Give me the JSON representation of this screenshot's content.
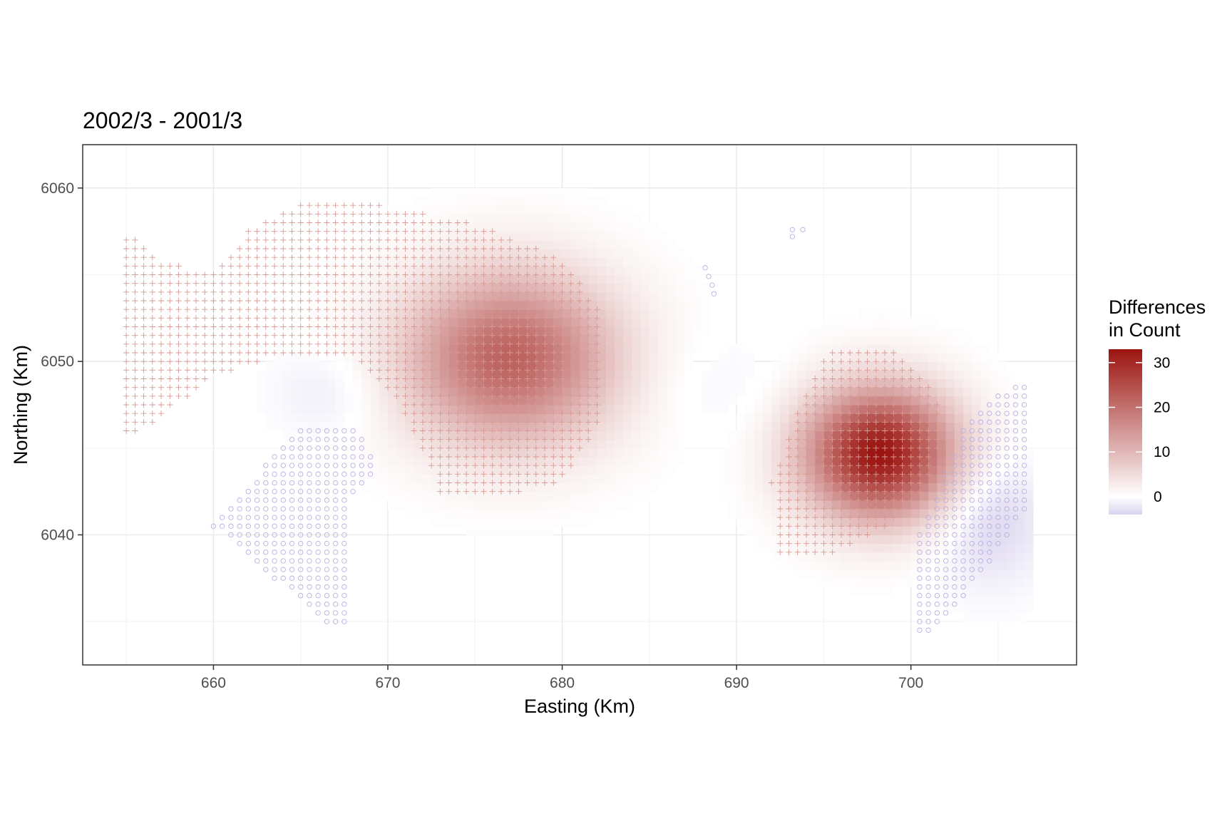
{
  "chart_data": {
    "type": "heatmap",
    "title": "2002/3 - 2001/3",
    "xlabel": "Easting (Km)",
    "ylabel": "Northing (Km)",
    "xlim": [
      652.5,
      709.5
    ],
    "ylim": [
      6032.5,
      6062.5
    ],
    "x_ticks": [
      660,
      670,
      680,
      690,
      700
    ],
    "y_ticks": [
      6040,
      6050,
      6060
    ],
    "grid": true,
    "legend": {
      "title_line1": "Differences",
      "title_line2": "in Count",
      "position": "right",
      "ticks": [
        30,
        20,
        10,
        0
      ],
      "min": -4,
      "max": 33,
      "color_low": "#d9d3ee",
      "color_mid": "#ffffff",
      "color_high": "#9b1410"
    },
    "surface_peaks": [
      {
        "x": 677.0,
        "y": 6050.2,
        "value": 22,
        "sx": 4.2,
        "sy": 3.4
      },
      {
        "x": 698.2,
        "y": 6044.7,
        "value": 33,
        "sx": 3.0,
        "sy": 2.6
      },
      {
        "x": 667.0,
        "y": 6048.3,
        "value": -2,
        "sx": 2.4,
        "sy": 1.8
      },
      {
        "x": 688.5,
        "y": 6048.6,
        "value": -1,
        "sx": 3.0,
        "sy": 2.0
      },
      {
        "x": 704.5,
        "y": 6041.0,
        "value": -4,
        "sx": 2.2,
        "sy": 2.6
      }
    ],
    "plus_regions": [
      {
        "series": "positive",
        "polygon": [
          [
            655,
            6057.5
          ],
          [
            657,
            6056
          ],
          [
            660,
            6055
          ],
          [
            662,
            6057.5
          ],
          [
            666,
            6059.5
          ],
          [
            670,
            6059
          ],
          [
            675,
            6058
          ],
          [
            680,
            6056
          ],
          [
            682.5,
            6052.5
          ],
          [
            682.5,
            6047
          ],
          [
            680,
            6043
          ],
          [
            678,
            6042.5
          ],
          [
            673,
            6042.5
          ],
          [
            671,
            6047
          ],
          [
            668,
            6050.5
          ],
          [
            664,
            6050.5
          ],
          [
            660,
            6049
          ],
          [
            656,
            6046
          ],
          [
            655,
            6046
          ]
        ]
      },
      {
        "series": "positive",
        "polygon": [
          [
            696,
            6051
          ],
          [
            699,
            6051
          ],
          [
            701.5,
            6048
          ],
          [
            702,
            6046
          ],
          [
            701,
            6043
          ],
          [
            699,
            6040.5
          ],
          [
            696,
            6039
          ],
          [
            692.5,
            6039
          ],
          [
            692,
            6043
          ],
          [
            693.5,
            6047
          ],
          [
            695,
            6050
          ]
        ]
      }
    ],
    "circle_regions": [
      {
        "series": "negative",
        "polygon": [
          [
            665,
            6046.5
          ],
          [
            668,
            6046.5
          ],
          [
            669.5,
            6044
          ],
          [
            668,
            6042
          ],
          [
            668,
            6035
          ],
          [
            667,
            6034.5
          ],
          [
            660,
            6040.5
          ],
          [
            663,
            6044
          ]
        ]
      },
      {
        "series": "negative",
        "polygon": [
          [
            707,
            6049
          ],
          [
            707,
            6042
          ],
          [
            705,
            6039
          ],
          [
            701.5,
            6034.5
          ],
          [
            700.5,
            6034.5
          ],
          [
            700.5,
            6040
          ],
          [
            703,
            6046
          ],
          [
            705,
            6048
          ]
        ]
      }
    ],
    "extra_circles": [
      [
        693.2,
        6057.6
      ],
      [
        693.8,
        6057.6
      ],
      [
        693.2,
        6057.2
      ],
      [
        688.2,
        6055.4
      ],
      [
        688.4,
        6054.9
      ],
      [
        688.6,
        6054.4
      ],
      [
        688.7,
        6053.9
      ]
    ]
  }
}
